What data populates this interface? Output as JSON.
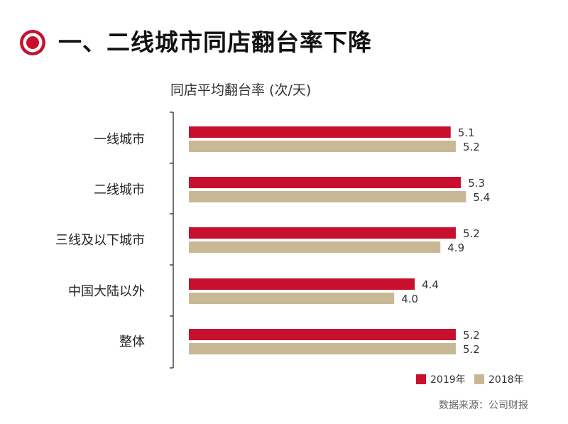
{
  "title": "一、二线城市同店翻台率下降",
  "subtitle": "同店平均翻台率 (次/天)",
  "source": "数据来源：公司财报",
  "colors": {
    "accent": "#c8102e",
    "secondary": "#c9b896",
    "axis": "#444444"
  },
  "chart_data": {
    "type": "bar",
    "orientation": "horizontal",
    "categories": [
      "一线城市",
      "二线城市",
      "三线及以下城市",
      "中国大陆以外",
      "整体"
    ],
    "series": [
      {
        "name": "2019年",
        "color": "#c8102e",
        "values": [
          5.1,
          5.3,
          5.2,
          4.4,
          5.2
        ]
      },
      {
        "name": "2018年",
        "color": "#c9b896",
        "values": [
          5.2,
          5.4,
          4.9,
          4.0,
          5.2
        ]
      }
    ],
    "value_labels": [
      [
        "5.1",
        "5.3",
        "5.2",
        "4.4",
        "5.2"
      ],
      [
        "5.2",
        "5.4",
        "4.9",
        "4.0",
        "5.2"
      ]
    ],
    "legend_position": "bottom-right",
    "grid": false
  }
}
